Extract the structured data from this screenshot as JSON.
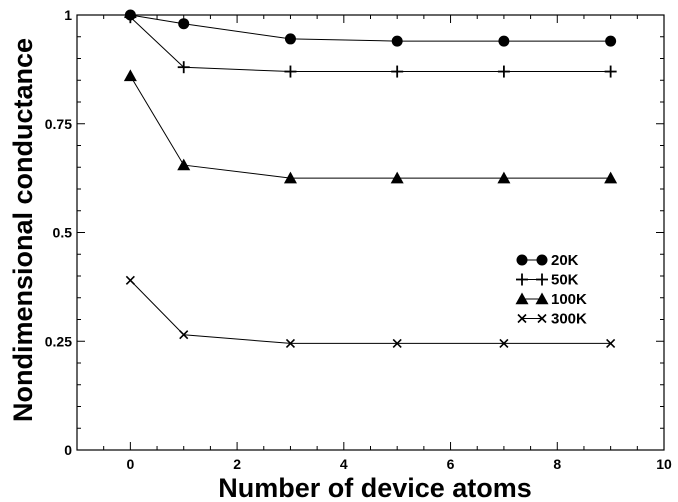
{
  "chart_data": {
    "type": "line",
    "title": "",
    "xlabel": "Number of device atoms",
    "ylabel": "Nondimensional conductance",
    "xlim": [
      -1,
      10
    ],
    "ylim": [
      0,
      1
    ],
    "x_ticks": [
      0,
      2,
      4,
      6,
      8,
      10
    ],
    "y_ticks": [
      0,
      0.25,
      0.5,
      0.75,
      1
    ],
    "x_tick_labels": [
      "0",
      "2",
      "4",
      "6",
      "8",
      "10"
    ],
    "y_tick_labels": [
      "0",
      "0.25",
      "0.5",
      "0.75",
      "1"
    ],
    "grid": false,
    "legend_position": "center-right",
    "x": [
      0,
      1,
      3,
      5,
      7,
      9
    ],
    "series": [
      {
        "name": "20K",
        "marker": "circle",
        "values": [
          1.0,
          0.98,
          0.945,
          0.94,
          0.94,
          0.94
        ]
      },
      {
        "name": "50K",
        "marker": "plus",
        "values": [
          0.995,
          0.88,
          0.87,
          0.87,
          0.87,
          0.87
        ]
      },
      {
        "name": "100K",
        "marker": "triangle",
        "values": [
          0.86,
          0.655,
          0.625,
          0.625,
          0.625,
          0.625
        ]
      },
      {
        "name": "300K",
        "marker": "x",
        "values": [
          0.39,
          0.265,
          0.245,
          0.245,
          0.245,
          0.245
        ]
      }
    ],
    "colors": {
      "line": "#000000",
      "background": "#ffffff"
    }
  }
}
